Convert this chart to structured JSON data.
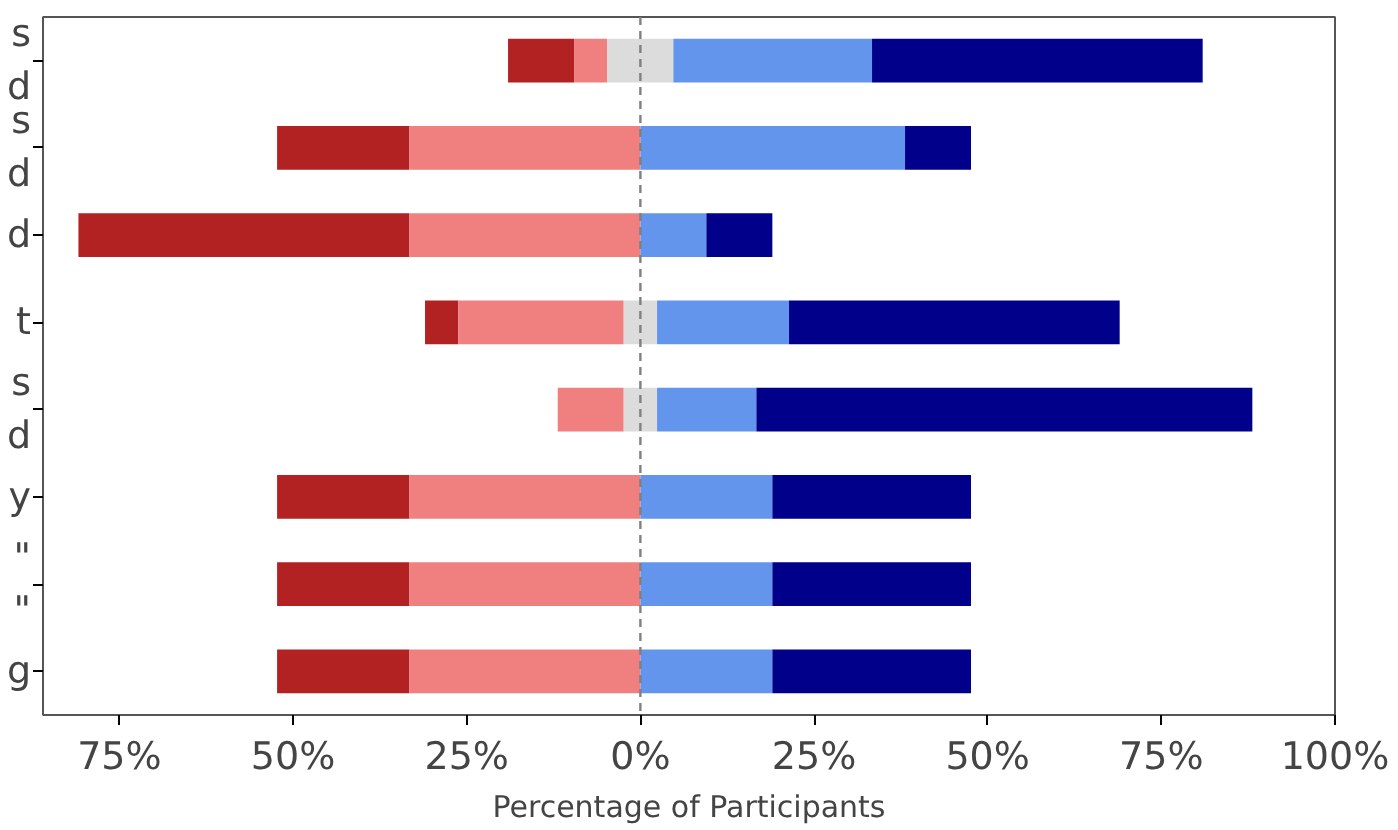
{
  "chart_data": {
    "type": "bar",
    "orientation": "horizontal",
    "xlabel": "Percentage of Participants",
    "categories": [
      "s\nd",
      "s\nd",
      "d",
      "t",
      "s\nd",
      "y",
      "\"\n\"",
      "g"
    ],
    "series": [
      {
        "color": "#b22222",
        "values": [
          9.5,
          19.0,
          47.6,
          4.8,
          null,
          19.0,
          19.0,
          19.0
        ],
        "base": [
          -19.05,
          -52.3,
          -80.9,
          -31.0,
          null,
          -52.3,
          -52.3,
          -52.3
        ]
      },
      {
        "color": "#f08080",
        "values": [
          4.8,
          33.3,
          33.3,
          23.8,
          9.5,
          33.3,
          33.3,
          33.3
        ],
        "base": [
          -9.55,
          -33.3,
          -33.3,
          -26.2,
          -11.9,
          -33.3,
          -33.3,
          -33.3
        ]
      },
      {
        "color": "#dcdcdc",
        "values": [
          9.5,
          null,
          null,
          4.8,
          4.8,
          null,
          null,
          null
        ],
        "base": [
          -4.75,
          null,
          null,
          -2.4,
          -2.4,
          null,
          null,
          null
        ]
      },
      {
        "color": "#6495ed",
        "values": [
          28.6,
          38.1,
          9.5,
          19.0,
          14.3,
          19.0,
          19.0,
          19.0
        ],
        "base": [
          4.75,
          0,
          0,
          2.4,
          2.4,
          0,
          0,
          0
        ]
      },
      {
        "color": "#00008b",
        "values": [
          47.6,
          9.5,
          9.5,
          47.6,
          71.4,
          28.6,
          28.6,
          28.6
        ],
        "base": [
          33.35,
          38.1,
          9.5,
          21.4,
          16.7,
          19.0,
          19.0,
          19.0
        ]
      }
    ],
    "xlim": [
      -86,
      100
    ],
    "xticks": [
      {
        "value": -75,
        "label": "75%"
      },
      {
        "value": -50,
        "label": "50%"
      },
      {
        "value": -25,
        "label": "25%"
      },
      {
        "value": 0,
        "label": "0%"
      },
      {
        "value": 25,
        "label": "25%"
      },
      {
        "value": 50,
        "label": "50%"
      },
      {
        "value": 75,
        "label": "75%"
      },
      {
        "value": 100,
        "label": "100%"
      }
    ],
    "ref_lines": [
      {
        "axis": "x",
        "value": 0,
        "color": "#808080",
        "line_style": "dashed"
      }
    ],
    "grid": false
  }
}
